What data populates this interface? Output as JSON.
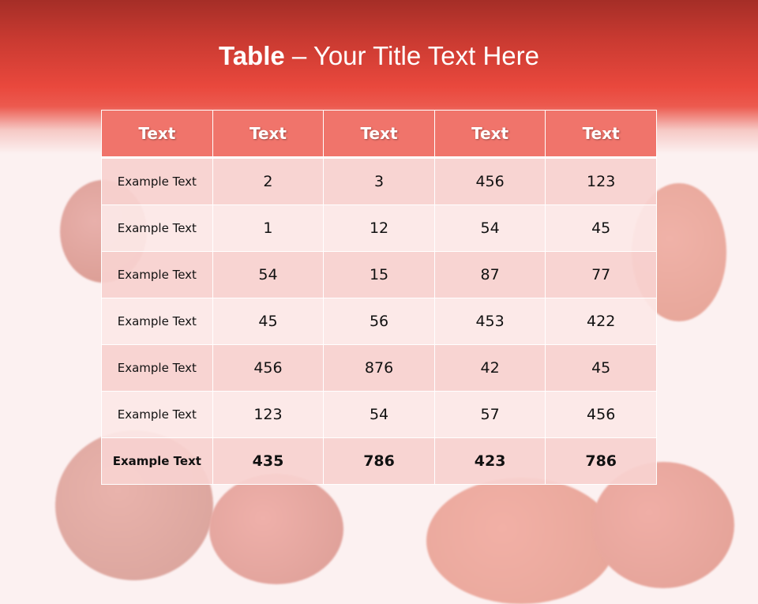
{
  "slide": {
    "title_bold": "Table",
    "title_rest": " – Your Title Text Here"
  },
  "table": {
    "headers": [
      "Text",
      "Text",
      "Text",
      "Text",
      "Text"
    ],
    "rows": [
      [
        "Example Text",
        "2",
        "3",
        "456",
        "123"
      ],
      [
        "Example Text",
        "1",
        "12",
        "54",
        "45"
      ],
      [
        "Example Text",
        "54",
        "15",
        "87",
        "77"
      ],
      [
        "Example Text",
        "45",
        "56",
        "453",
        "422"
      ],
      [
        "Example Text",
        "456",
        "876",
        "42",
        "45"
      ],
      [
        "Example Text",
        "123",
        "54",
        "57",
        "456"
      ],
      [
        "Example Text",
        "435",
        "786",
        "423",
        "786"
      ]
    ]
  },
  "colors": {
    "header_band": "#e9483d",
    "table_header": "#f0746b",
    "row_odd": "#f8d2d0",
    "row_even": "#fce8e7"
  }
}
